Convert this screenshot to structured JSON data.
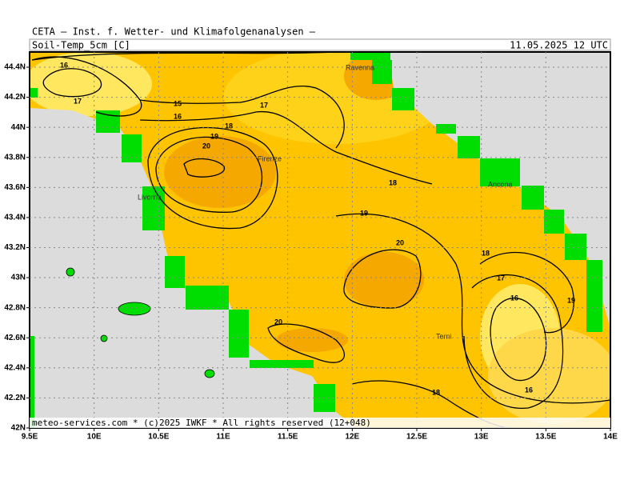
{
  "header": {
    "title": "CETA — Inst. f. Wetter- und Klimafolgenanalysen —",
    "variable": "Soil-Temp_5cm [C]",
    "valid_time": "11.05.2025 12 UTC"
  },
  "axes": {
    "latitude": [
      "44.4N",
      "44.2N",
      "44N",
      "43.8N",
      "43.6N",
      "43.4N",
      "43.2N",
      "43N",
      "42.8N",
      "42.6N",
      "42.4N",
      "42.2N",
      "42N"
    ],
    "longitude": [
      "9.5E",
      "10E",
      "10.5E",
      "11E",
      "11.5E",
      "12E",
      "12.5E",
      "13E",
      "13.5E",
      "14E"
    ]
  },
  "places": [
    "Ravenna",
    "Firenze",
    "Livorno",
    "Ancona",
    "Terni"
  ],
  "contour_labels": [
    "16",
    "17",
    "15",
    "16",
    "17",
    "18",
    "19",
    "20",
    "18",
    "19",
    "20",
    "18",
    "17",
    "16",
    "19",
    "20",
    "18",
    "16"
  ],
  "footer": "meteo-services.com * (c)2025 IWKF * All rights reserved (12+048)"
}
